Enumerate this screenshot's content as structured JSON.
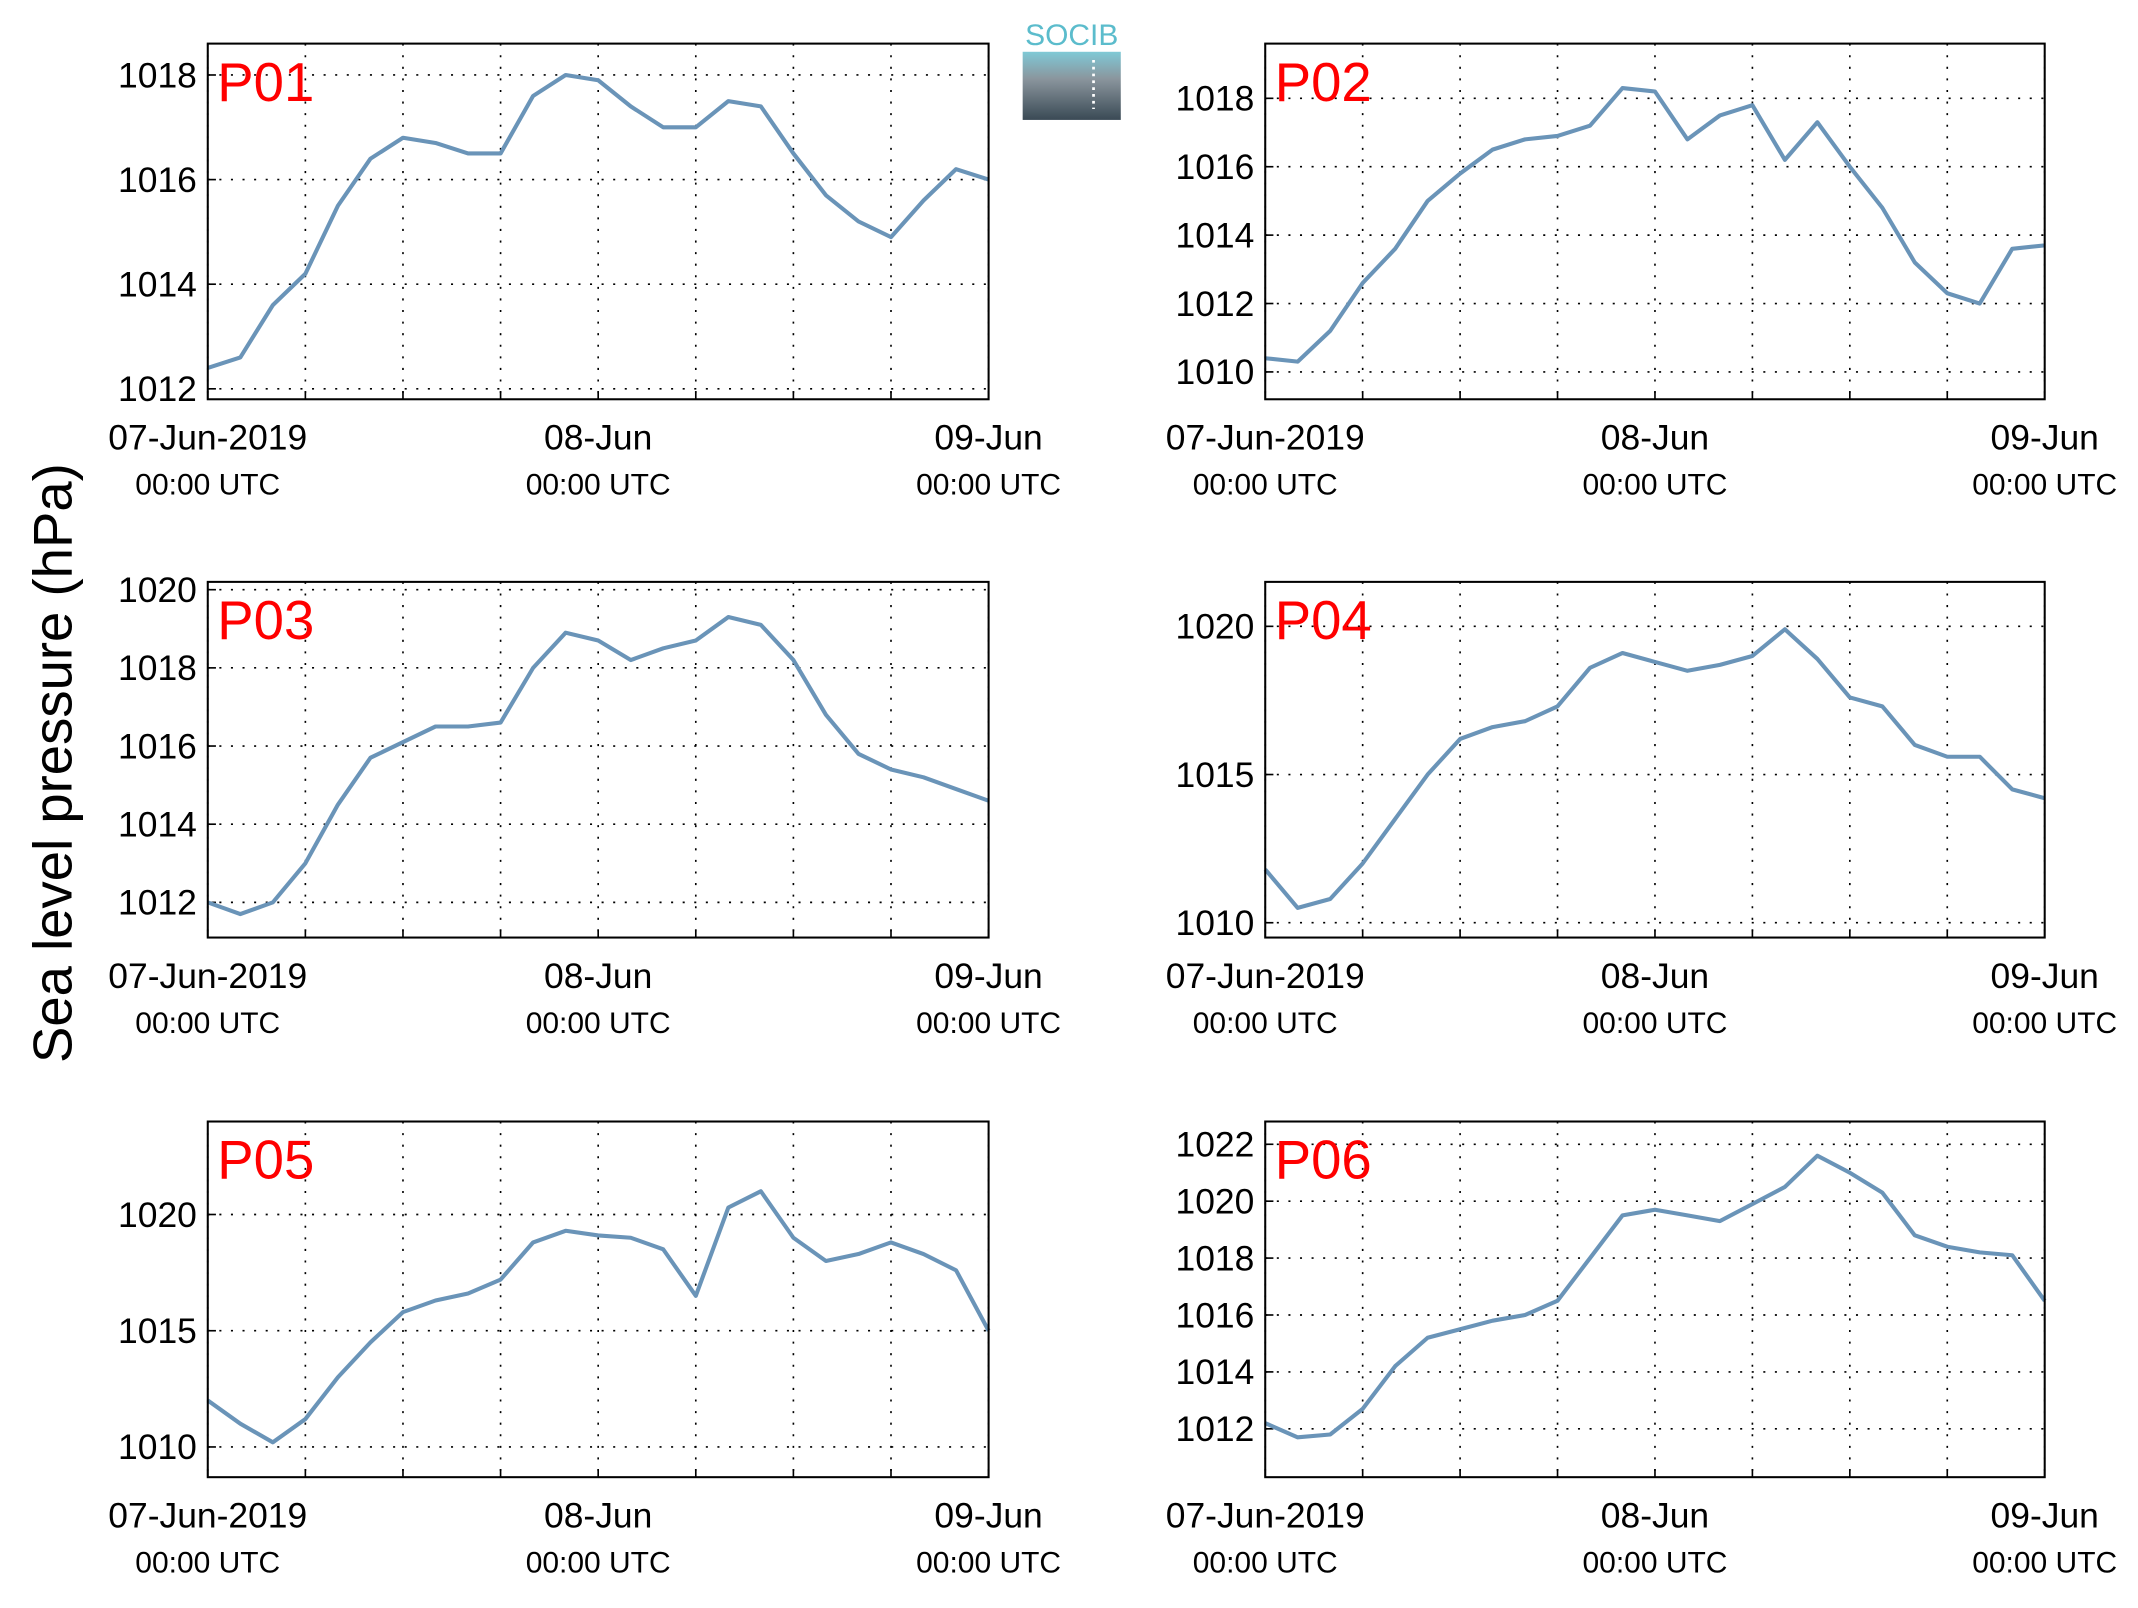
{
  "ylabel": "Sea level pressure (hPa)",
  "logo": "SOCIB",
  "chart_data": [
    {
      "type": "line",
      "title": "P01",
      "x": [
        0,
        2,
        4,
        6,
        8,
        10,
        12,
        14,
        16,
        18,
        20,
        22,
        24,
        26,
        28,
        30,
        32,
        34,
        36,
        38,
        40,
        42,
        44,
        46,
        48
      ],
      "series": [
        {
          "name": "P01",
          "color": "#6a94b8",
          "values": [
            1012.4,
            1012.6,
            1013.6,
            1014.2,
            1015.5,
            1016.4,
            1016.8,
            1016.7,
            1016.5,
            1016.5,
            1017.6,
            1018.0,
            1017.9,
            1017.4,
            1017.0,
            1017.0,
            1017.5,
            1017.4,
            1016.5,
            1015.7,
            1015.2,
            1014.9,
            1015.6,
            1016.2,
            1016.0
          ]
        }
      ],
      "xlim": [
        0,
        48
      ],
      "xticks": [
        {
          "value": 0,
          "label": "07-Jun-2019",
          "sublabel": "00:00 UTC"
        },
        {
          "value": 6,
          "label": null
        },
        {
          "value": 12,
          "label": null
        },
        {
          "value": 18,
          "label": null
        },
        {
          "value": 24,
          "label": "08-Jun",
          "sublabel": "00:00 UTC"
        },
        {
          "value": 30,
          "label": null
        },
        {
          "value": 36,
          "label": null
        },
        {
          "value": 42,
          "label": null
        },
        {
          "value": 48,
          "label": "09-Jun",
          "sublabel": "00:00 UTC"
        }
      ],
      "ylim": [
        1011.8,
        1018.6
      ],
      "yticks": [
        1012,
        1014,
        1016,
        1018
      ],
      "grid": true
    },
    {
      "type": "line",
      "title": "P02",
      "x": [
        0,
        2,
        4,
        6,
        8,
        10,
        12,
        14,
        16,
        18,
        20,
        22,
        24,
        26,
        28,
        30,
        32,
        34,
        36,
        38,
        40,
        42,
        44,
        46,
        48
      ],
      "series": [
        {
          "name": "P02",
          "color": "#6a94b8",
          "values": [
            1010.4,
            1010.3,
            1011.2,
            1012.6,
            1013.6,
            1015.0,
            1015.8,
            1016.5,
            1016.8,
            1016.9,
            1017.2,
            1018.3,
            1018.2,
            1016.8,
            1017.5,
            1017.8,
            1016.2,
            1017.3,
            1016.0,
            1014.8,
            1013.2,
            1012.3,
            1012.0,
            1013.6,
            1013.7
          ]
        }
      ],
      "xlim": [
        0,
        48
      ],
      "xticks": [
        {
          "value": 0,
          "label": "07-Jun-2019",
          "sublabel": "00:00 UTC"
        },
        {
          "value": 6,
          "label": null
        },
        {
          "value": 12,
          "label": null
        },
        {
          "value": 18,
          "label": null
        },
        {
          "value": 24,
          "label": "08-Jun",
          "sublabel": "00:00 UTC"
        },
        {
          "value": 30,
          "label": null
        },
        {
          "value": 36,
          "label": null
        },
        {
          "value": 42,
          "label": null
        },
        {
          "value": 48,
          "label": "09-Jun",
          "sublabel": "00:00 UTC"
        }
      ],
      "ylim": [
        1009.2,
        1019.6
      ],
      "yticks": [
        1010,
        1012,
        1014,
        1016,
        1018
      ],
      "grid": true
    },
    {
      "type": "line",
      "title": "P03",
      "x": [
        0,
        2,
        4,
        6,
        8,
        10,
        12,
        14,
        16,
        18,
        20,
        22,
        24,
        26,
        28,
        30,
        32,
        34,
        36,
        38,
        40,
        42,
        44,
        46,
        48
      ],
      "series": [
        {
          "name": "P03",
          "color": "#6a94b8",
          "values": [
            1012.0,
            1011.7,
            1012.0,
            1013.0,
            1014.5,
            1015.7,
            1016.1,
            1016.5,
            1016.5,
            1016.6,
            1018.0,
            1018.9,
            1018.7,
            1018.2,
            1018.5,
            1018.7,
            1019.3,
            1019.1,
            1018.2,
            1016.8,
            1015.8,
            1015.4,
            1015.2,
            1014.9,
            1014.6
          ]
        }
      ],
      "xlim": [
        0,
        48
      ],
      "xticks": [
        {
          "value": 0,
          "label": "07-Jun-2019",
          "sublabel": "00:00 UTC"
        },
        {
          "value": 6,
          "label": null
        },
        {
          "value": 12,
          "label": null
        },
        {
          "value": 18,
          "label": null
        },
        {
          "value": 24,
          "label": "08-Jun",
          "sublabel": "00:00 UTC"
        },
        {
          "value": 30,
          "label": null
        },
        {
          "value": 36,
          "label": null
        },
        {
          "value": 42,
          "label": null
        },
        {
          "value": 48,
          "label": "09-Jun",
          "sublabel": "00:00 UTC"
        }
      ],
      "ylim": [
        1011.1,
        1020.2
      ],
      "yticks": [
        1012,
        1014,
        1016,
        1018,
        1020
      ],
      "grid": true
    },
    {
      "type": "line",
      "title": "P04",
      "x": [
        0,
        2,
        4,
        6,
        8,
        10,
        12,
        14,
        16,
        18,
        20,
        22,
        24,
        26,
        28,
        30,
        32,
        34,
        36,
        38,
        40,
        42,
        44,
        46,
        48
      ],
      "series": [
        {
          "name": "P04",
          "color": "#6a94b8",
          "values": [
            1011.8,
            1010.5,
            1010.8,
            1012.0,
            1013.5,
            1015.0,
            1016.2,
            1016.6,
            1016.8,
            1017.3,
            1018.6,
            1019.1,
            1018.8,
            1018.5,
            1018.7,
            1019.0,
            1019.9,
            1018.9,
            1017.6,
            1017.3,
            1016.0,
            1015.6,
            1015.6,
            1014.5,
            1014.2
          ]
        }
      ],
      "xlim": [
        0,
        48
      ],
      "xticks": [
        {
          "value": 0,
          "label": "07-Jun-2019",
          "sublabel": "00:00 UTC"
        },
        {
          "value": 6,
          "label": null
        },
        {
          "value": 12,
          "label": null
        },
        {
          "value": 18,
          "label": null
        },
        {
          "value": 24,
          "label": "08-Jun",
          "sublabel": "00:00 UTC"
        },
        {
          "value": 30,
          "label": null
        },
        {
          "value": 36,
          "label": null
        },
        {
          "value": 42,
          "label": null
        },
        {
          "value": 48,
          "label": "09-Jun",
          "sublabel": "00:00 UTC"
        }
      ],
      "ylim": [
        1009.5,
        1021.5
      ],
      "yticks": [
        1010,
        1015,
        1020
      ],
      "grid": true
    },
    {
      "type": "line",
      "title": "P05",
      "x": [
        0,
        2,
        4,
        6,
        8,
        10,
        12,
        14,
        16,
        18,
        20,
        22,
        24,
        26,
        28,
        30,
        32,
        34,
        36,
        38,
        40,
        42,
        44,
        46,
        48
      ],
      "series": [
        {
          "name": "P05",
          "color": "#6a94b8",
          "values": [
            1012.0,
            1011.0,
            1010.2,
            1011.2,
            1013.0,
            1014.5,
            1015.8,
            1016.3,
            1016.6,
            1017.2,
            1018.8,
            1019.3,
            1019.1,
            1019.0,
            1018.5,
            1016.5,
            1020.3,
            1021.0,
            1019.0,
            1018.0,
            1018.3,
            1018.8,
            1018.3,
            1017.6,
            1015.0
          ]
        }
      ],
      "xlim": [
        0,
        48
      ],
      "xticks": [
        {
          "value": 0,
          "label": "07-Jun-2019",
          "sublabel": "00:00 UTC"
        },
        {
          "value": 6,
          "label": null
        },
        {
          "value": 12,
          "label": null
        },
        {
          "value": 18,
          "label": null
        },
        {
          "value": 24,
          "label": "08-Jun",
          "sublabel": "00:00 UTC"
        },
        {
          "value": 30,
          "label": null
        },
        {
          "value": 36,
          "label": null
        },
        {
          "value": 42,
          "label": null
        },
        {
          "value": 48,
          "label": "09-Jun",
          "sublabel": "00:00 UTC"
        }
      ],
      "ylim": [
        1008.7,
        1024.0
      ],
      "yticks": [
        1010,
        1015,
        1020
      ],
      "grid": true
    },
    {
      "type": "line",
      "title": "P06",
      "x": [
        0,
        2,
        4,
        6,
        8,
        10,
        12,
        14,
        16,
        18,
        20,
        22,
        24,
        26,
        28,
        30,
        32,
        34,
        36,
        38,
        40,
        42,
        44,
        46,
        48
      ],
      "series": [
        {
          "name": "P06",
          "color": "#6a94b8",
          "values": [
            1012.2,
            1011.7,
            1011.8,
            1012.7,
            1014.2,
            1015.2,
            1015.5,
            1015.8,
            1016.0,
            1016.5,
            1018.0,
            1019.5,
            1019.7,
            1019.5,
            1019.3,
            1019.9,
            1020.5,
            1021.6,
            1021.0,
            1020.3,
            1018.8,
            1018.4,
            1018.2,
            1018.1,
            1016.5
          ]
        }
      ],
      "xlim": [
        0,
        48
      ],
      "xticks": [
        {
          "value": 0,
          "label": "07-Jun-2019",
          "sublabel": "00:00 UTC"
        },
        {
          "value": 6,
          "label": null
        },
        {
          "value": 12,
          "label": null
        },
        {
          "value": 18,
          "label": null
        },
        {
          "value": 24,
          "label": "08-Jun",
          "sublabel": "00:00 UTC"
        },
        {
          "value": 30,
          "label": null
        },
        {
          "value": 36,
          "label": null
        },
        {
          "value": 42,
          "label": null
        },
        {
          "value": 48,
          "label": "09-Jun",
          "sublabel": "00:00 UTC"
        }
      ],
      "ylim": [
        1010.3,
        1022.8
      ],
      "yticks": [
        1012,
        1014,
        1016,
        1018,
        1020,
        1022
      ],
      "grid": true
    }
  ]
}
